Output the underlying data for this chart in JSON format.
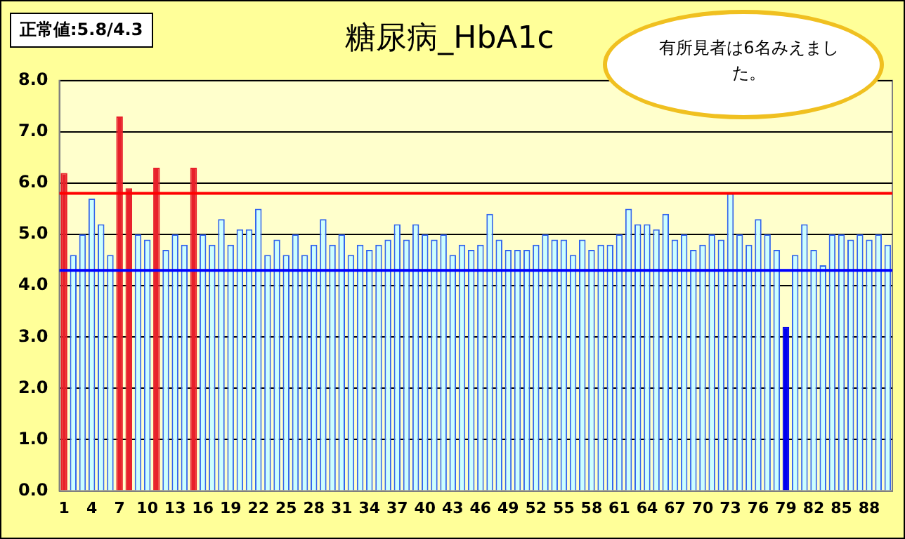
{
  "chart_data": {
    "type": "bar",
    "title": "糖尿病_HbA1c",
    "categories": [
      "1",
      null,
      null,
      "4",
      null,
      null,
      "7",
      null,
      null,
      "10",
      null,
      null,
      "13",
      null,
      null,
      "16",
      null,
      null,
      "19",
      null,
      null,
      "22",
      null,
      null,
      "25",
      null,
      null,
      "28",
      null,
      null,
      "31",
      null,
      null,
      "34",
      null,
      null,
      "37",
      null,
      null,
      "40",
      null,
      null,
      "43",
      null,
      null,
      "46",
      null,
      null,
      "49",
      null,
      null,
      "52",
      null,
      null,
      "55",
      null,
      null,
      "58",
      null,
      null,
      "61",
      null,
      null,
      "64",
      null,
      null,
      "67",
      null,
      null,
      "70",
      null,
      null,
      "73",
      null,
      null,
      "76",
      null,
      null,
      "79",
      null,
      null,
      "82",
      null,
      null,
      "85",
      null,
      null,
      "88",
      null,
      null
    ],
    "values": [
      6.2,
      4.6,
      5.0,
      5.7,
      5.2,
      4.6,
      7.3,
      5.9,
      5.0,
      4.9,
      6.3,
      4.7,
      5.0,
      4.8,
      6.3,
      5.0,
      4.8,
      5.3,
      4.8,
      5.1,
      5.1,
      5.5,
      4.6,
      4.9,
      4.6,
      5.0,
      4.6,
      4.8,
      5.3,
      4.8,
      5.0,
      4.6,
      4.8,
      4.7,
      4.8,
      4.9,
      5.2,
      4.9,
      5.2,
      5.0,
      4.9,
      5.0,
      4.6,
      4.8,
      4.7,
      4.8,
      5.4,
      4.9,
      4.7,
      4.7,
      4.7,
      4.8,
      5.0,
      4.9,
      4.9,
      4.6,
      4.9,
      4.7,
      4.8,
      4.8,
      5.0,
      5.5,
      5.2,
      5.2,
      5.1,
      5.4,
      4.9,
      5.0,
      4.7,
      4.8,
      5.0,
      4.9,
      5.8,
      5.0,
      4.8,
      5.3,
      5.0,
      4.7,
      3.2,
      4.6,
      5.2,
      4.7,
      4.4,
      5.0,
      5.0,
      4.9,
      5.0,
      4.9,
      5.0,
      4.8
    ],
    "colors": [
      "#e8202a",
      "#ccffff",
      "#ccffff",
      "#ccffff",
      "#ccffff",
      "#ccffff",
      "#e8202a",
      "#e8202a",
      "#ccffff",
      "#ccffff",
      "#e8202a",
      "#ccffff",
      "#ccffff",
      "#ccffff",
      "#e8202a",
      "#ccffff",
      "#ccffff",
      "#ccffff",
      "#ccffff",
      "#ccffff",
      "#ccffff",
      "#ccffff",
      "#ccffff",
      "#ccffff",
      "#ccffff",
      "#ccffff",
      "#ccffff",
      "#ccffff",
      "#ccffff",
      "#ccffff",
      "#ccffff",
      "#ccffff",
      "#ccffff",
      "#ccffff",
      "#ccffff",
      "#ccffff",
      "#ccffff",
      "#ccffff",
      "#ccffff",
      "#ccffff",
      "#ccffff",
      "#ccffff",
      "#ccffff",
      "#ccffff",
      "#ccffff",
      "#ccffff",
      "#ccffff",
      "#ccffff",
      "#ccffff",
      "#ccffff",
      "#ccffff",
      "#ccffff",
      "#ccffff",
      "#ccffff",
      "#ccffff",
      "#ccffff",
      "#ccffff",
      "#ccffff",
      "#ccffff",
      "#ccffff",
      "#ccffff",
      "#ccffff",
      "#ccffff",
      "#ccffff",
      "#ccffff",
      "#ccffff",
      "#ccffff",
      "#ccffff",
      "#ccffff",
      "#ccffff",
      "#ccffff",
      "#ccffff",
      "#ccffff",
      "#ccffff",
      "#ccffff",
      "#ccffff",
      "#ccffff",
      "#ccffff",
      "#0000ee",
      "#ccffff",
      "#ccffff",
      "#ccffff",
      "#ccffff",
      "#ccffff",
      "#ccffff",
      "#ccffff",
      "#ccffff",
      "#ccffff",
      "#ccffff",
      "#ccffff"
    ],
    "ylim": [
      0,
      8
    ],
    "yticks": [
      {
        "value": 0,
        "label": "0.0"
      },
      {
        "value": 1,
        "label": "1.0"
      },
      {
        "value": 2,
        "label": "2.0"
      },
      {
        "value": 3,
        "label": "3.0"
      },
      {
        "value": 4,
        "label": "4.0"
      },
      {
        "value": 5,
        "label": "5.0"
      },
      {
        "value": 6,
        "label": "6.0"
      },
      {
        "value": 7,
        "label": "7.0"
      },
      {
        "value": 8,
        "label": "8.0"
      }
    ],
    "grid": "y",
    "ref_lines": [
      {
        "axis": "y",
        "value": 5.8,
        "color": "#ff0000"
      },
      {
        "axis": "y",
        "value": 4.3,
        "color": "#0000ff"
      }
    ],
    "annotations": [
      "正常値:5.8/4.3",
      "有所見者は6名みえました。"
    ]
  }
}
